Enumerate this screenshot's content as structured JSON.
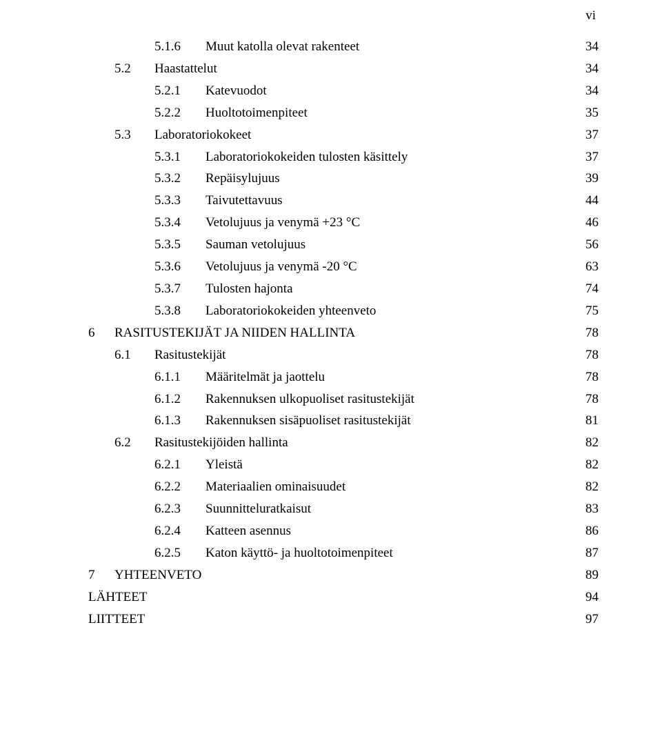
{
  "page_label": "vi",
  "font": {
    "family": "Times New Roman",
    "size_body_pt": 14,
    "color": "#000000",
    "background": "#ffffff"
  },
  "entries": [
    {
      "level": 3,
      "number": "5.1.6",
      "title": "Muut katolla olevat rakenteet",
      "page": "34"
    },
    {
      "level": 2,
      "number": "5.2",
      "title": "Haastattelut",
      "page": "34"
    },
    {
      "level": 3,
      "number": "5.2.1",
      "title": "Katevuodot",
      "page": "34"
    },
    {
      "level": 3,
      "number": "5.2.2",
      "title": "Huoltotoimenpiteet",
      "page": "35"
    },
    {
      "level": 2,
      "number": "5.3",
      "title": "Laboratoriokokeet",
      "page": "37"
    },
    {
      "level": 3,
      "number": "5.3.1",
      "title": "Laboratoriokokeiden tulosten käsittely",
      "page": "37"
    },
    {
      "level": 3,
      "number": "5.3.2",
      "title": "Repäisylujuus",
      "page": "39"
    },
    {
      "level": 3,
      "number": "5.3.3",
      "title": "Taivutettavuus",
      "page": "44"
    },
    {
      "level": 3,
      "number": "5.3.4",
      "title": "Vetolujuus ja venymä +23 °C",
      "page": "46"
    },
    {
      "level": 3,
      "number": "5.3.5",
      "title": "Sauman vetolujuus",
      "page": "56"
    },
    {
      "level": 3,
      "number": "5.3.6",
      "title": "Vetolujuus ja venymä -20 °C",
      "page": "63"
    },
    {
      "level": 3,
      "number": "5.3.7",
      "title": "Tulosten hajonta",
      "page": "74"
    },
    {
      "level": 3,
      "number": "5.3.8",
      "title": "Laboratoriokokeiden yhteenveto",
      "page": "75"
    },
    {
      "level": 0,
      "number": "6",
      "title": "RASITUSTEKIJÄT JA NIIDEN HALLINTA",
      "page": "78"
    },
    {
      "level": 2,
      "number": "6.1",
      "title": "Rasitustekijät",
      "page": "78"
    },
    {
      "level": 3,
      "number": "6.1.1",
      "title": "Määritelmät ja jaottelu",
      "page": "78"
    },
    {
      "level": 3,
      "number": "6.1.2",
      "title": "Rakennuksen ulkopuoliset rasitustekijät",
      "page": "78"
    },
    {
      "level": 3,
      "number": "6.1.3",
      "title": "Rakennuksen sisäpuoliset rasitustekijät",
      "page": "81"
    },
    {
      "level": 2,
      "number": "6.2",
      "title": "Rasitustekijöiden hallinta",
      "page": "82"
    },
    {
      "level": 3,
      "number": "6.2.1",
      "title": "Yleistä",
      "page": "82"
    },
    {
      "level": 3,
      "number": "6.2.2",
      "title": "Materiaalien ominaisuudet",
      "page": "82"
    },
    {
      "level": 3,
      "number": "6.2.3",
      "title": "Suunnitteluratkaisut",
      "page": "83"
    },
    {
      "level": 3,
      "number": "6.2.4",
      "title": "Katteen asennus",
      "page": "86"
    },
    {
      "level": 3,
      "number": "6.2.5",
      "title": "Katon käyttö- ja huoltotoimenpiteet",
      "page": "87"
    },
    {
      "level": 0,
      "number": "7",
      "title": "YHTEENVETO",
      "page": "89"
    },
    {
      "level": 0,
      "number": "",
      "title": "LÄHTEET",
      "page": "94",
      "plain": true
    },
    {
      "level": 0,
      "number": "",
      "title": "LIITTEET",
      "page": "97",
      "plain": true
    }
  ]
}
